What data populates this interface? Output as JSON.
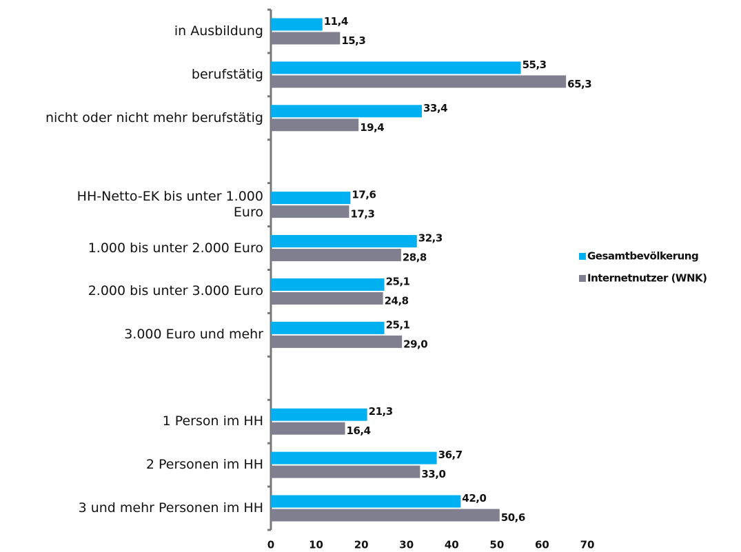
{
  "chart_data": {
    "type": "bar",
    "orientation": "horizontal",
    "categories": [
      "in Ausbildung",
      "berufstätig",
      "nicht oder nicht mehr berufstätig",
      null,
      "HH-Netto-EK bis unter 1.000\nEuro",
      "1.000 bis unter 2.000 Euro",
      "2.000 bis unter 3.000 Euro",
      "3.000 Euro und mehr",
      null,
      "1 Person im HH",
      "2 Personen im HH",
      "3 und mehr Personen im HH"
    ],
    "series": [
      {
        "name": "Gesamtbevölkerung",
        "color": "#00b0f0",
        "values": [
          11.4,
          55.3,
          33.4,
          null,
          17.6,
          32.3,
          25.1,
          25.1,
          null,
          21.3,
          36.7,
          42.0
        ],
        "value_labels": [
          "11,4",
          "55,3",
          "33,4",
          null,
          "17,6",
          "32,3",
          "25,1",
          "25,1",
          null,
          "21,3",
          "36,7",
          "42,0"
        ]
      },
      {
        "name": "Internetnutzer (WNK)",
        "color": "#7f7f8f",
        "values": [
          15.3,
          65.3,
          19.4,
          null,
          17.3,
          28.8,
          24.8,
          29.0,
          null,
          16.4,
          33.0,
          50.6
        ],
        "value_labels": [
          "15,3",
          "65,3",
          "19,4",
          null,
          "17,3",
          "28,8",
          "24,8",
          "29,0",
          null,
          "16,4",
          "33,0",
          "50,6"
        ]
      }
    ],
    "xlim": [
      0,
      70
    ],
    "xticks": [
      0,
      10,
      20,
      30,
      40,
      50,
      60,
      70
    ],
    "legend": "right"
  }
}
